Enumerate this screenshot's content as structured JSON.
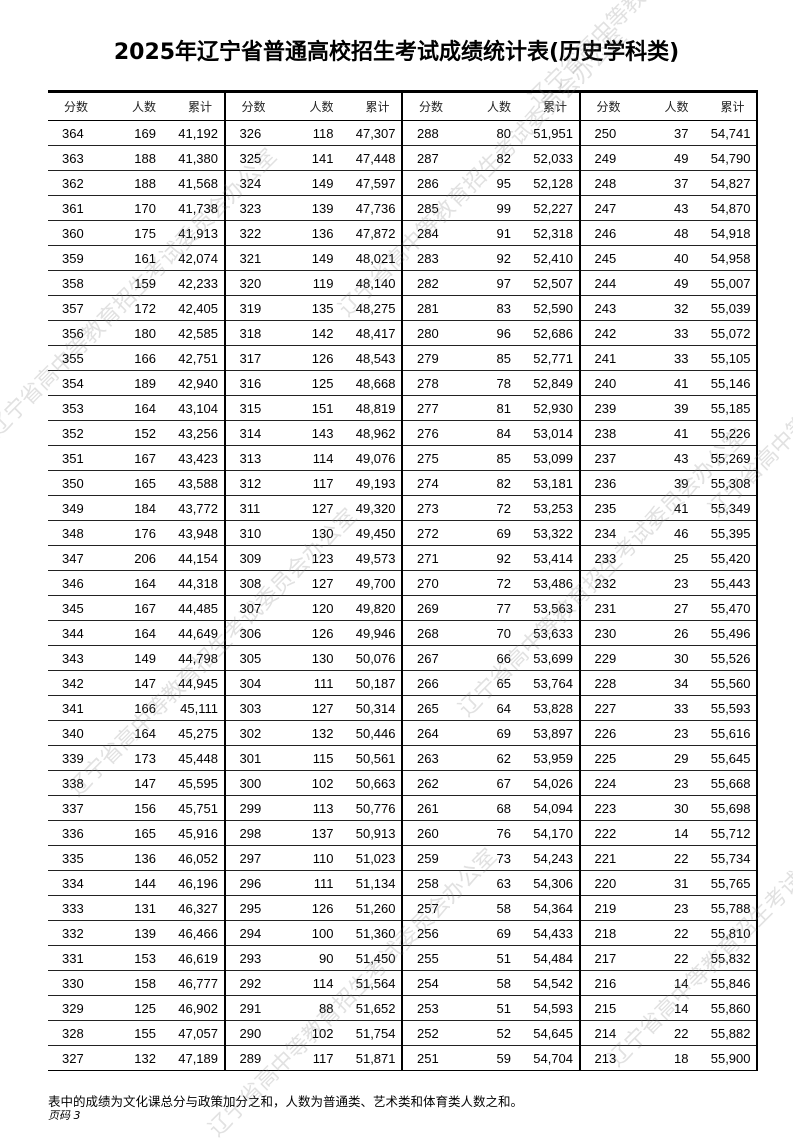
{
  "title": "2025年辽宁省普通高校招生考试成绩统计表(历史学科类)",
  "headers": {
    "score": "分数",
    "count": "人数",
    "cumulative": "累计"
  },
  "groups": [
    [
      [
        "364",
        "169",
        "41,192"
      ],
      [
        "363",
        "188",
        "41,380"
      ],
      [
        "362",
        "188",
        "41,568"
      ],
      [
        "361",
        "170",
        "41,738"
      ],
      [
        "360",
        "175",
        "41,913"
      ],
      [
        "359",
        "161",
        "42,074"
      ],
      [
        "358",
        "159",
        "42,233"
      ],
      [
        "357",
        "172",
        "42,405"
      ],
      [
        "356",
        "180",
        "42,585"
      ],
      [
        "355",
        "166",
        "42,751"
      ],
      [
        "354",
        "189",
        "42,940"
      ],
      [
        "353",
        "164",
        "43,104"
      ],
      [
        "352",
        "152",
        "43,256"
      ],
      [
        "351",
        "167",
        "43,423"
      ],
      [
        "350",
        "165",
        "43,588"
      ],
      [
        "349",
        "184",
        "43,772"
      ],
      [
        "348",
        "176",
        "43,948"
      ],
      [
        "347",
        "206",
        "44,154"
      ],
      [
        "346",
        "164",
        "44,318"
      ],
      [
        "345",
        "167",
        "44,485"
      ],
      [
        "344",
        "164",
        "44,649"
      ],
      [
        "343",
        "149",
        "44,798"
      ],
      [
        "342",
        "147",
        "44,945"
      ],
      [
        "341",
        "166",
        "45,111"
      ],
      [
        "340",
        "164",
        "45,275"
      ],
      [
        "339",
        "173",
        "45,448"
      ],
      [
        "338",
        "147",
        "45,595"
      ],
      [
        "337",
        "156",
        "45,751"
      ],
      [
        "336",
        "165",
        "45,916"
      ],
      [
        "335",
        "136",
        "46,052"
      ],
      [
        "334",
        "144",
        "46,196"
      ],
      [
        "333",
        "131",
        "46,327"
      ],
      [
        "332",
        "139",
        "46,466"
      ],
      [
        "331",
        "153",
        "46,619"
      ],
      [
        "330",
        "158",
        "46,777"
      ],
      [
        "329",
        "125",
        "46,902"
      ],
      [
        "328",
        "155",
        "47,057"
      ],
      [
        "327",
        "132",
        "47,189"
      ]
    ],
    [
      [
        "326",
        "118",
        "47,307"
      ],
      [
        "325",
        "141",
        "47,448"
      ],
      [
        "324",
        "149",
        "47,597"
      ],
      [
        "323",
        "139",
        "47,736"
      ],
      [
        "322",
        "136",
        "47,872"
      ],
      [
        "321",
        "149",
        "48,021"
      ],
      [
        "320",
        "119",
        "48,140"
      ],
      [
        "319",
        "135",
        "48,275"
      ],
      [
        "318",
        "142",
        "48,417"
      ],
      [
        "317",
        "126",
        "48,543"
      ],
      [
        "316",
        "125",
        "48,668"
      ],
      [
        "315",
        "151",
        "48,819"
      ],
      [
        "314",
        "143",
        "48,962"
      ],
      [
        "313",
        "114",
        "49,076"
      ],
      [
        "312",
        "117",
        "49,193"
      ],
      [
        "311",
        "127",
        "49,320"
      ],
      [
        "310",
        "130",
        "49,450"
      ],
      [
        "309",
        "123",
        "49,573"
      ],
      [
        "308",
        "127",
        "49,700"
      ],
      [
        "307",
        "120",
        "49,820"
      ],
      [
        "306",
        "126",
        "49,946"
      ],
      [
        "305",
        "130",
        "50,076"
      ],
      [
        "304",
        "111",
        "50,187"
      ],
      [
        "303",
        "127",
        "50,314"
      ],
      [
        "302",
        "132",
        "50,446"
      ],
      [
        "301",
        "115",
        "50,561"
      ],
      [
        "300",
        "102",
        "50,663"
      ],
      [
        "299",
        "113",
        "50,776"
      ],
      [
        "298",
        "137",
        "50,913"
      ],
      [
        "297",
        "110",
        "51,023"
      ],
      [
        "296",
        "111",
        "51,134"
      ],
      [
        "295",
        "126",
        "51,260"
      ],
      [
        "294",
        "100",
        "51,360"
      ],
      [
        "293",
        "90",
        "51,450"
      ],
      [
        "292",
        "114",
        "51,564"
      ],
      [
        "291",
        "88",
        "51,652"
      ],
      [
        "290",
        "102",
        "51,754"
      ],
      [
        "289",
        "117",
        "51,871"
      ]
    ],
    [
      [
        "288",
        "80",
        "51,951"
      ],
      [
        "287",
        "82",
        "52,033"
      ],
      [
        "286",
        "95",
        "52,128"
      ],
      [
        "285",
        "99",
        "52,227"
      ],
      [
        "284",
        "91",
        "52,318"
      ],
      [
        "283",
        "92",
        "52,410"
      ],
      [
        "282",
        "97",
        "52,507"
      ],
      [
        "281",
        "83",
        "52,590"
      ],
      [
        "280",
        "96",
        "52,686"
      ],
      [
        "279",
        "85",
        "52,771"
      ],
      [
        "278",
        "78",
        "52,849"
      ],
      [
        "277",
        "81",
        "52,930"
      ],
      [
        "276",
        "84",
        "53,014"
      ],
      [
        "275",
        "85",
        "53,099"
      ],
      [
        "274",
        "82",
        "53,181"
      ],
      [
        "273",
        "72",
        "53,253"
      ],
      [
        "272",
        "69",
        "53,322"
      ],
      [
        "271",
        "92",
        "53,414"
      ],
      [
        "270",
        "72",
        "53,486"
      ],
      [
        "269",
        "77",
        "53,563"
      ],
      [
        "268",
        "70",
        "53,633"
      ],
      [
        "267",
        "66",
        "53,699"
      ],
      [
        "266",
        "65",
        "53,764"
      ],
      [
        "265",
        "64",
        "53,828"
      ],
      [
        "264",
        "69",
        "53,897"
      ],
      [
        "263",
        "62",
        "53,959"
      ],
      [
        "262",
        "67",
        "54,026"
      ],
      [
        "261",
        "68",
        "54,094"
      ],
      [
        "260",
        "76",
        "54,170"
      ],
      [
        "259",
        "73",
        "54,243"
      ],
      [
        "258",
        "63",
        "54,306"
      ],
      [
        "257",
        "58",
        "54,364"
      ],
      [
        "256",
        "69",
        "54,433"
      ],
      [
        "255",
        "51",
        "54,484"
      ],
      [
        "254",
        "58",
        "54,542"
      ],
      [
        "253",
        "51",
        "54,593"
      ],
      [
        "252",
        "52",
        "54,645"
      ],
      [
        "251",
        "59",
        "54,704"
      ]
    ],
    [
      [
        "250",
        "37",
        "54,741"
      ],
      [
        "249",
        "49",
        "54,790"
      ],
      [
        "248",
        "37",
        "54,827"
      ],
      [
        "247",
        "43",
        "54,870"
      ],
      [
        "246",
        "48",
        "54,918"
      ],
      [
        "245",
        "40",
        "54,958"
      ],
      [
        "244",
        "49",
        "55,007"
      ],
      [
        "243",
        "32",
        "55,039"
      ],
      [
        "242",
        "33",
        "55,072"
      ],
      [
        "241",
        "33",
        "55,105"
      ],
      [
        "240",
        "41",
        "55,146"
      ],
      [
        "239",
        "39",
        "55,185"
      ],
      [
        "238",
        "41",
        "55,226"
      ],
      [
        "237",
        "43",
        "55,269"
      ],
      [
        "236",
        "39",
        "55,308"
      ],
      [
        "235",
        "41",
        "55,349"
      ],
      [
        "234",
        "46",
        "55,395"
      ],
      [
        "233",
        "25",
        "55,420"
      ],
      [
        "232",
        "23",
        "55,443"
      ],
      [
        "231",
        "27",
        "55,470"
      ],
      [
        "230",
        "26",
        "55,496"
      ],
      [
        "229",
        "30",
        "55,526"
      ],
      [
        "228",
        "34",
        "55,560"
      ],
      [
        "227",
        "33",
        "55,593"
      ],
      [
        "226",
        "23",
        "55,616"
      ],
      [
        "225",
        "29",
        "55,645"
      ],
      [
        "224",
        "23",
        "55,668"
      ],
      [
        "223",
        "30",
        "55,698"
      ],
      [
        "222",
        "14",
        "55,712"
      ],
      [
        "221",
        "22",
        "55,734"
      ],
      [
        "220",
        "31",
        "55,765"
      ],
      [
        "219",
        "23",
        "55,788"
      ],
      [
        "218",
        "22",
        "55,810"
      ],
      [
        "217",
        "22",
        "55,832"
      ],
      [
        "216",
        "14",
        "55,846"
      ],
      [
        "215",
        "14",
        "55,860"
      ],
      [
        "214",
        "22",
        "55,882"
      ],
      [
        "213",
        "18",
        "55,900"
      ]
    ]
  ],
  "footer": {
    "note": "表中的成绩为文化课总分与政策加分之和，人数为普通类、艺术类和体育类人数之和。",
    "page": "页码 3"
  },
  "watermark": "辽宁省高中等教育招生考试委员会办公室"
}
